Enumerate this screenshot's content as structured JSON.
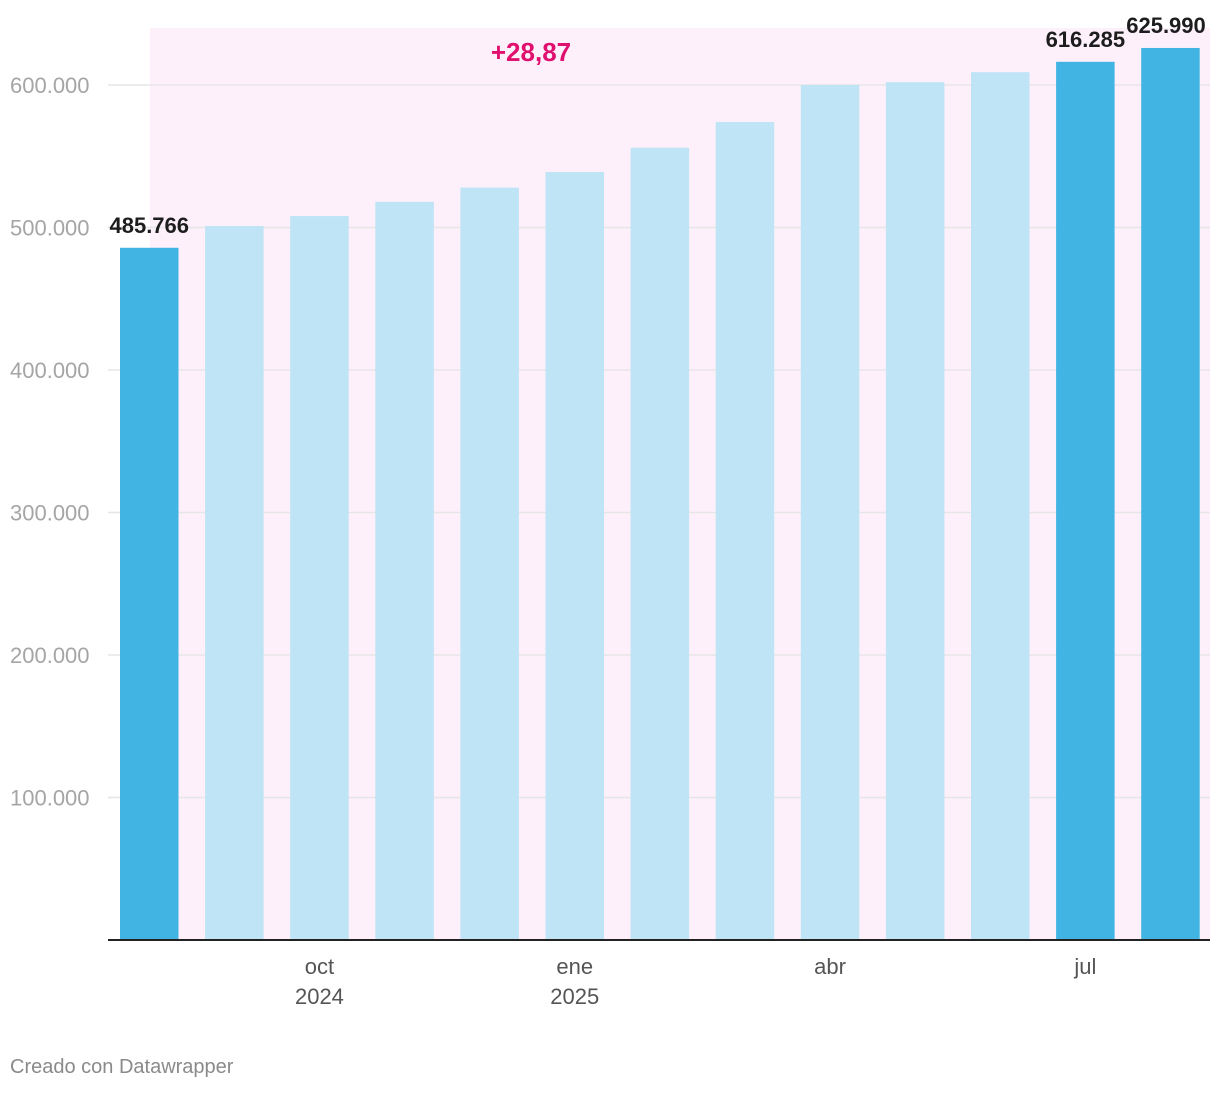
{
  "chart_data": {
    "type": "bar",
    "categories": [
      "2024-08",
      "2024-09",
      "2024-10",
      "2024-11",
      "2024-12",
      "2025-01",
      "2025-02",
      "2025-03",
      "2025-04",
      "2025-05",
      "2025-06",
      "2025-07",
      "2025-08"
    ],
    "values": [
      485766,
      501000,
      508000,
      518000,
      528000,
      539000,
      556000,
      574000,
      600000,
      602000,
      609000,
      616285,
      625990
    ],
    "highlighted": [
      true,
      false,
      false,
      false,
      false,
      false,
      false,
      false,
      false,
      false,
      false,
      true,
      true
    ],
    "data_labels": [
      {
        "index": 0,
        "text": "485.766"
      },
      {
        "index": 11,
        "text": "616.285"
      },
      {
        "index": 12,
        "text": "625.990"
      }
    ],
    "y_ticks": [
      {
        "value": 100000,
        "label": "100.000"
      },
      {
        "value": 200000,
        "label": "200.000"
      },
      {
        "value": 300000,
        "label": "300.000"
      },
      {
        "value": 400000,
        "label": "400.000"
      },
      {
        "value": 500000,
        "label": "500.000"
      },
      {
        "value": 600000,
        "label": "600.000"
      }
    ],
    "x_ticks": [
      {
        "index": 2,
        "line1": "oct",
        "line2": "2024"
      },
      {
        "index": 5,
        "line1": "ene",
        "line2": "2025"
      },
      {
        "index": 8,
        "line1": "abr",
        "line2": ""
      },
      {
        "index": 11,
        "line1": "jul",
        "line2": ""
      }
    ],
    "ylim": [
      0,
      640000
    ],
    "annotation": {
      "text": "+28,87",
      "color": "#e0106f"
    },
    "colors": {
      "highlight": "#41b4e3",
      "normal": "#bee4f5",
      "band": "#fdf0fa",
      "grid": "#e6e6e6",
      "axis": "#222222"
    },
    "title": "",
    "xlabel": "",
    "ylabel": ""
  },
  "footer": {
    "credit": "Creado con Datawrapper"
  }
}
